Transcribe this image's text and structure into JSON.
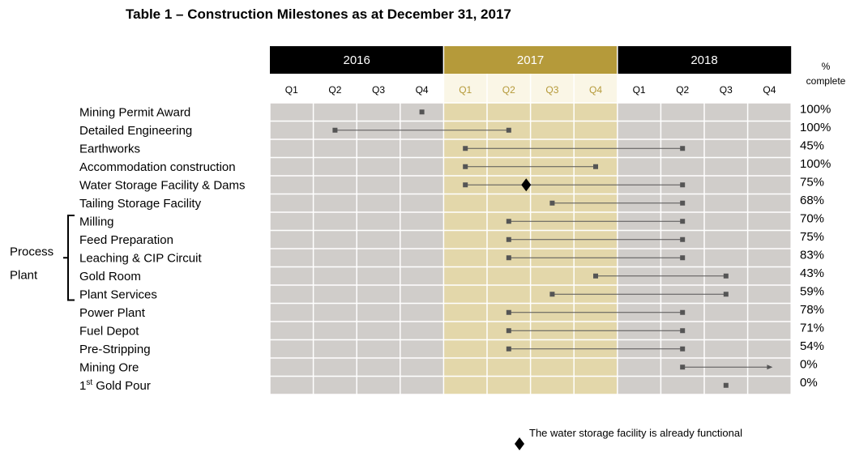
{
  "title": "Table 1 – Construction Milestones as at December 31, 2017",
  "chart_data": {
    "type": "gantt",
    "years": [
      {
        "label": "2016",
        "color": "#000000"
      },
      {
        "label": "2017",
        "color": "#b59a3a"
      },
      {
        "label": "2018",
        "color": "#000000"
      }
    ],
    "quarters": [
      "Q1",
      "Q2",
      "Q3",
      "Q4",
      "Q1",
      "Q2",
      "Q3",
      "Q4",
      "Q1",
      "Q2",
      "Q3",
      "Q4"
    ],
    "highlight_year": "2017",
    "percent_header": [
      "%",
      "complete"
    ],
    "tasks": [
      {
        "name": "Mining Permit Award",
        "start": 4,
        "end": 4,
        "percent": "100%"
      },
      {
        "name": "Detailed Engineering",
        "start": 2,
        "end": 6,
        "percent": "100%"
      },
      {
        "name": "Earthworks",
        "start": 5,
        "end": 10,
        "percent": "45%"
      },
      {
        "name": "Accommodation construction",
        "start": 5,
        "end": 8,
        "percent": "100%"
      },
      {
        "name": "Water Storage Facility & Dams",
        "start": 5,
        "end": 10,
        "percent": "75%",
        "milestone": 6.4
      },
      {
        "name": "Tailing Storage Facility",
        "start": 7,
        "end": 10,
        "percent": "68%"
      },
      {
        "name": "Milling",
        "start": 6,
        "end": 10,
        "percent": "70%"
      },
      {
        "name": "Feed Preparation",
        "start": 6,
        "end": 10,
        "percent": "75%"
      },
      {
        "name": "Leaching & CIP Circuit",
        "start": 6,
        "end": 10,
        "percent": "83%"
      },
      {
        "name": "Gold Room",
        "start": 8,
        "end": 11,
        "percent": "43%"
      },
      {
        "name": "Plant Services",
        "start": 7,
        "end": 11,
        "percent": "59%"
      },
      {
        "name": "Power Plant",
        "start": 6,
        "end": 10,
        "percent": "78%"
      },
      {
        "name": "Fuel Depot",
        "start": 6,
        "end": 10,
        "percent": "71%"
      },
      {
        "name": "Pre-Stripping",
        "start": 6,
        "end": 10,
        "percent": "54%"
      },
      {
        "name": "Mining Ore",
        "start": 10,
        "end": 12,
        "percent": "0%",
        "arrow": true
      },
      {
        "name": "1st Gold Pour",
        "name_main": "1",
        "name_sup": "st",
        "name_rest": " Gold Pour",
        "start": 11,
        "end": 11,
        "percent": "0%"
      }
    ],
    "group": {
      "label_lines": [
        "Process",
        "Plant"
      ],
      "first_task": 6,
      "last_task": 10
    },
    "colors": {
      "row_fill": "#d0cdca",
      "highlight_fill": "#e3d7aa",
      "bar": "#555555",
      "marker": "#555555"
    },
    "legend_note": "The water storage facility is already functional"
  }
}
